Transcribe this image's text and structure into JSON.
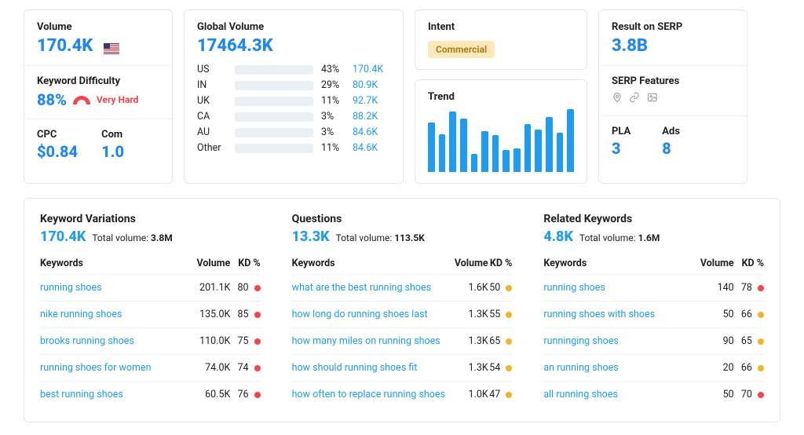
{
  "colors": {
    "accent": "#1e9cf2",
    "accent_dark": "#1e87f0",
    "border": "#e5e7eb",
    "bar_bg": "#eceff3",
    "red": "#f7434b",
    "yellow": "#f0b429",
    "badge_bg": "#fce8b8",
    "badge_text": "#a97f14",
    "icon_muted": "#9aa3ae"
  },
  "volume": {
    "label": "Volume",
    "value": "170.4K",
    "flag": "US"
  },
  "difficulty": {
    "label": "Keyword Difficulty",
    "value": "88%",
    "level": "Very Hard"
  },
  "cpc": {
    "label": "CPC",
    "value": "$0.84"
  },
  "com": {
    "label": "Com",
    "value": "1.0"
  },
  "global_volume": {
    "label": "Global Volume",
    "value": "17464.3K",
    "rows": [
      {
        "country": "US",
        "pct": 43,
        "val": "170.4K"
      },
      {
        "country": "IN",
        "pct": 29,
        "val": "80.9K"
      },
      {
        "country": "UK",
        "pct": 11,
        "val": "92.7K"
      },
      {
        "country": "CA",
        "pct": 3,
        "val": "88.2K"
      },
      {
        "country": "AU",
        "pct": 3,
        "val": "84.6K"
      },
      {
        "country": "Other",
        "pct": 11,
        "val": "84.6K"
      }
    ]
  },
  "intent": {
    "label": "Intent",
    "value": "Commercial"
  },
  "trend": {
    "label": "Trend",
    "bars": [
      72,
      55,
      88,
      78,
      26,
      60,
      54,
      32,
      34,
      70,
      62,
      80,
      58,
      92
    ]
  },
  "serp_result": {
    "label": "Result on SERP",
    "value": "3.8B"
  },
  "serp_features": {
    "label": "SERP Features"
  },
  "pla": {
    "label": "PLA",
    "value": "3"
  },
  "ads": {
    "label": "Ads",
    "value": "8"
  },
  "columns_header": {
    "keywords": "Keywords",
    "volume": "Volume",
    "kd": "KD %"
  },
  "variations": {
    "title": "Keyword Variations",
    "main": "170.4K",
    "sub_label": "Total volume:",
    "sub_value": "3.8M",
    "rows": [
      {
        "kw": "running shoes",
        "vol": "201.1K",
        "kd": 80,
        "dot": "#f7434b"
      },
      {
        "kw": "nike running shoes",
        "vol": "135.0K",
        "kd": 85,
        "dot": "#f7434b"
      },
      {
        "kw": "brooks running shoes",
        "vol": "110.0K",
        "kd": 75,
        "dot": "#f7434b"
      },
      {
        "kw": "running shoes for women",
        "vol": "74.0K",
        "kd": 74,
        "dot": "#f7434b"
      },
      {
        "kw": "best running shoes",
        "vol": "60.5K",
        "kd": 76,
        "dot": "#f7434b"
      }
    ]
  },
  "questions": {
    "title": "Questions",
    "main": "13.3K",
    "sub_label": "Total volume:",
    "sub_value": "113.5K",
    "rows": [
      {
        "kw": "what are the best running shoes",
        "vol": "1.6K",
        "kd": 50,
        "dot": "#f0b429"
      },
      {
        "kw": "how long do running shoes last",
        "vol": "1.3K",
        "kd": 55,
        "dot": "#f0b429"
      },
      {
        "kw": "how many miles on running shoes",
        "vol": "1.3K",
        "kd": 65,
        "dot": "#f0b429"
      },
      {
        "kw": "how should running shoes fit",
        "vol": "1.3K",
        "kd": 54,
        "dot": "#f0b429"
      },
      {
        "kw": "how often to replace running shoes",
        "vol": "1.0K",
        "kd": 47,
        "dot": "#f0b429"
      }
    ]
  },
  "related": {
    "title": "Related Keywords",
    "main": "4.8K",
    "sub_label": "Total volume:",
    "sub_value": "1.6M",
    "rows": [
      {
        "kw": "running shoes",
        "vol": "140",
        "kd": 78,
        "dot": "#f7434b"
      },
      {
        "kw": "running shoes with shoes",
        "vol": "50",
        "kd": 66,
        "dot": "#f0b429"
      },
      {
        "kw": "runninging shoes",
        "vol": "90",
        "kd": 65,
        "dot": "#f0b429"
      },
      {
        "kw": "an running shoes",
        "vol": "20",
        "kd": 66,
        "dot": "#f0b429"
      },
      {
        "kw": "all running shoes",
        "vol": "50",
        "kd": 70,
        "dot": "#f7434b"
      }
    ]
  }
}
